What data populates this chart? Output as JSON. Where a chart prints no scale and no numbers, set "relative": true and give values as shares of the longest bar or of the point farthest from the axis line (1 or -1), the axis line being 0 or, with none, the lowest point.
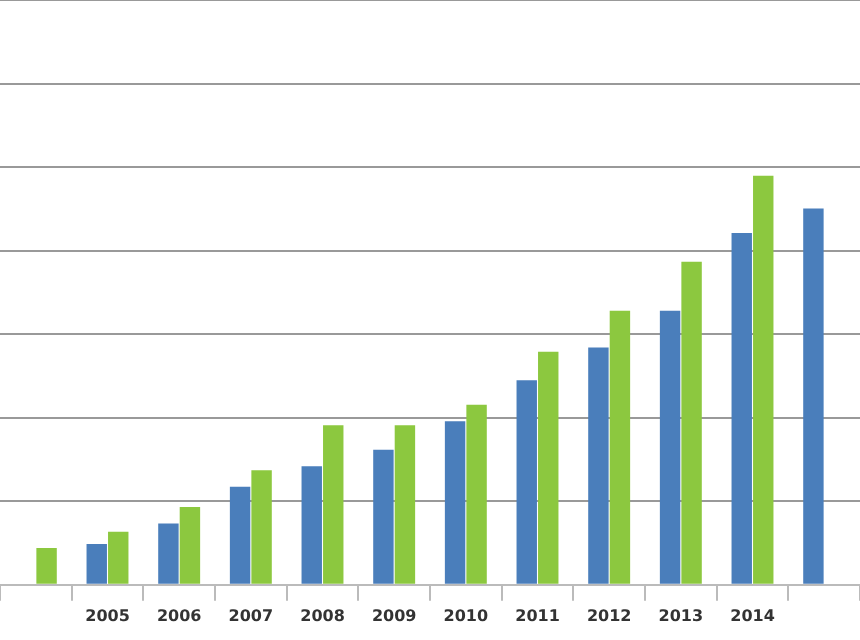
{
  "chart_data": {
    "type": "bar",
    "relative": true,
    "grid": "y",
    "categories": [
      null,
      "2005",
      "2006",
      "2007",
      "2008",
      "2009",
      "2010",
      "2011",
      "2012",
      "2013",
      "2014",
      null
    ],
    "series": [
      {
        "color": "#4a7ebb",
        "values": [
          null,
          0.1,
          0.15,
          0.24,
          0.29,
          0.33,
          0.4,
          0.5,
          0.58,
          0.67,
          0.86,
          0.92
        ]
      },
      {
        "color": "#8cc83f",
        "values": [
          0.09,
          0.13,
          0.19,
          0.28,
          0.39,
          0.39,
          0.44,
          0.57,
          0.67,
          0.79,
          1,
          null
        ]
      }
    ]
  }
}
